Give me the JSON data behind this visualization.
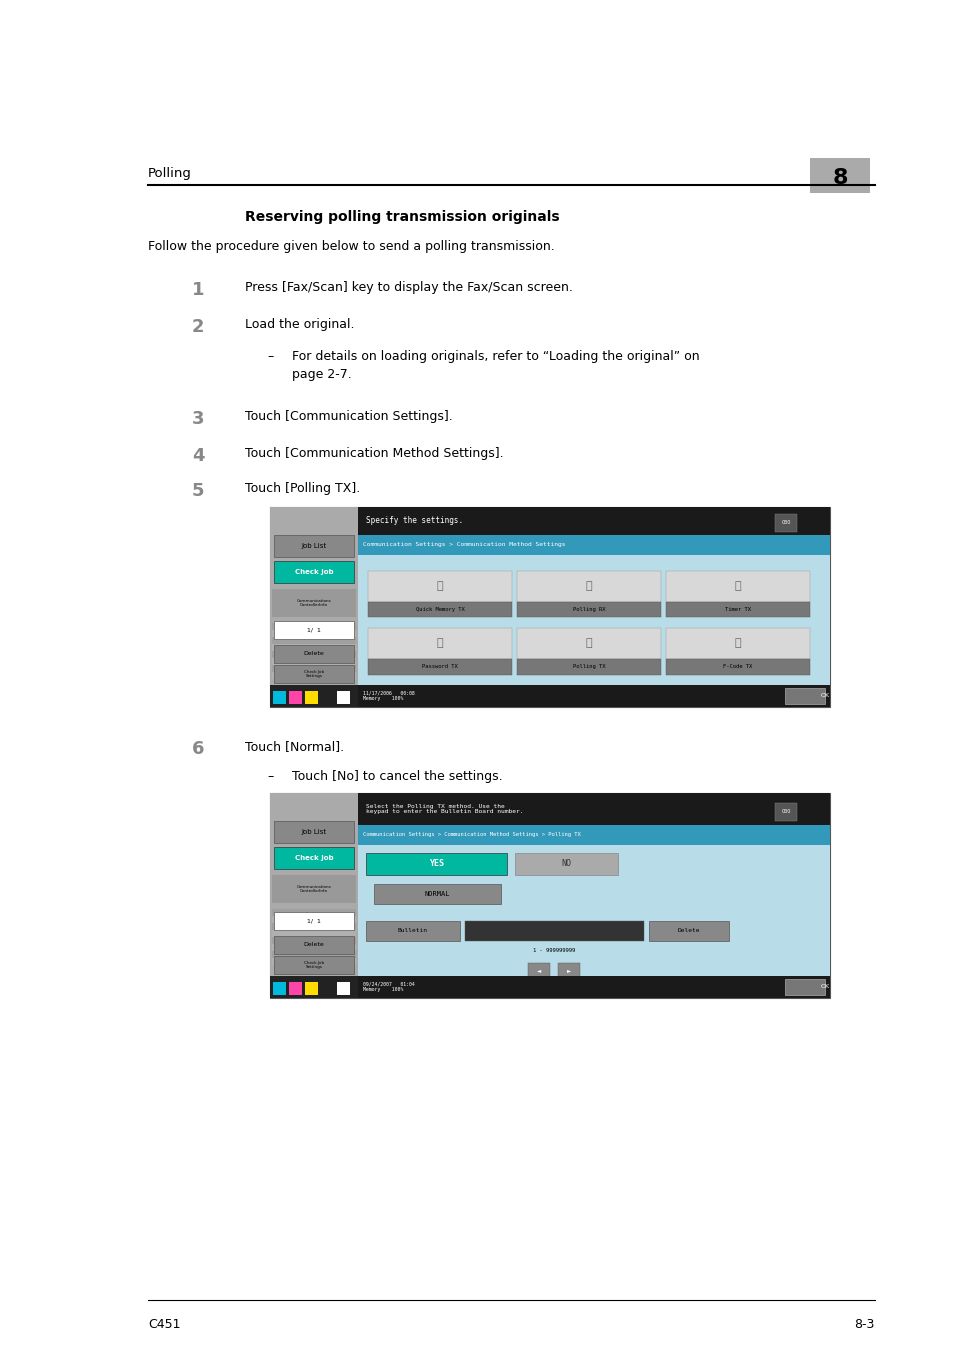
{
  "page_bg": "#ffffff",
  "header_text": "Polling",
  "header_chapter": "8",
  "footer_text_left": "C451",
  "footer_text_right": "8-3",
  "section_title": "Reserving polling transmission originals",
  "intro_text": "Follow the procedure given below to send a polling transmission.",
  "step1_text": "Press [Fax/Scan] key to display the Fax/Scan screen.",
  "step2_text": "Load the original.",
  "step2_sub": "For details on loading originals, refer to “Loading the original” on\npage 2-7.",
  "step3_text": "Touch [Communication Settings].",
  "step4_text": "Touch [Communication Method Settings].",
  "step5_text": "Touch [Polling TX].",
  "step6_text": "Touch [Normal].",
  "step6_sub": "Touch [No] to cancel the settings.",
  "screen1_title": "Specify the settings.",
  "screen1_breadcrumb": "Communication Settings > Communication Method Settings",
  "screen1_row1": [
    "Quick Memory TX",
    "Polling RX",
    "Timer TX"
  ],
  "screen1_row2": [
    "Password TX",
    "Polling TX",
    "F-Code TX"
  ],
  "screen1_datetime": "11/17/2006   00:08\nMemory    100%",
  "screen2_title": "Select the Polling TX method. Use the\nkeypad to enter the Bulletin Board number.",
  "screen2_breadcrumb": "Communication Settings > Communication Method Settings > Polling TX",
  "screen2_datetime": "09/24/2007   01:04\nMemory    100%",
  "num_color": "#888888",
  "teal_color": "#00b8a0",
  "dark_bg": "#1a1a1a",
  "blue_bar": "#3399bb",
  "light_blue_bg": "#b8dde8",
  "sidebar_bg": "#aaaaaa",
  "btn_bg": "#888888"
}
